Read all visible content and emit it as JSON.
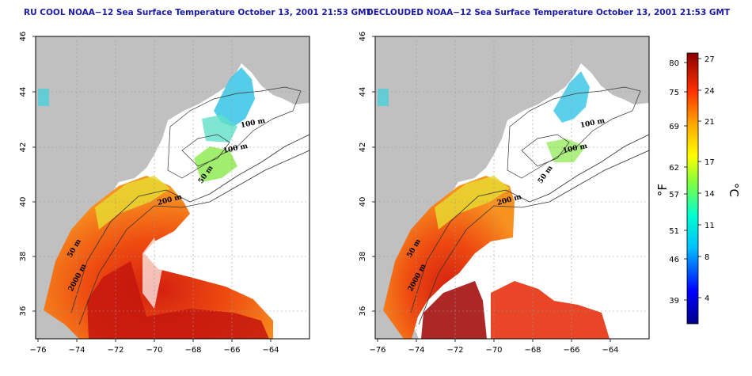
{
  "panels": [
    {
      "title": "RU COOL NOAA−12 Sea Surface Temperature October 13, 2001 21:53 GMT",
      "contour_labels": [
        "100 m",
        "100 m",
        "50 m",
        "200 m",
        "50 m",
        "2000 m"
      ]
    },
    {
      "title": "DECLOUDED NOAA−12 Sea Surface Temperature October 13, 2001 21:53 GMT",
      "contour_labels": [
        "100 m",
        "100 m",
        "50 m",
        "200 m",
        "50 m",
        "2000 m"
      ]
    }
  ],
  "axes": {
    "x_ticks": [
      "−76",
      "−74",
      "−72",
      "−70",
      "−68",
      "−66",
      "−64"
    ],
    "y_ticks": [
      "46",
      "44",
      "42",
      "40",
      "38",
      "36"
    ]
  },
  "colorbar": {
    "fahrenheit_ticks": [
      "80",
      "75",
      "69",
      "62",
      "57",
      "51",
      "46",
      "39"
    ],
    "celsius_ticks": [
      "27",
      "24",
      "21",
      "17",
      "14",
      "11",
      "8",
      "4"
    ],
    "left_unit": "°F",
    "right_unit": "°C"
  },
  "colors": {
    "land": "#c0c0c0",
    "water_nodata": "#ffffff",
    "title": "#1a1aa8"
  }
}
